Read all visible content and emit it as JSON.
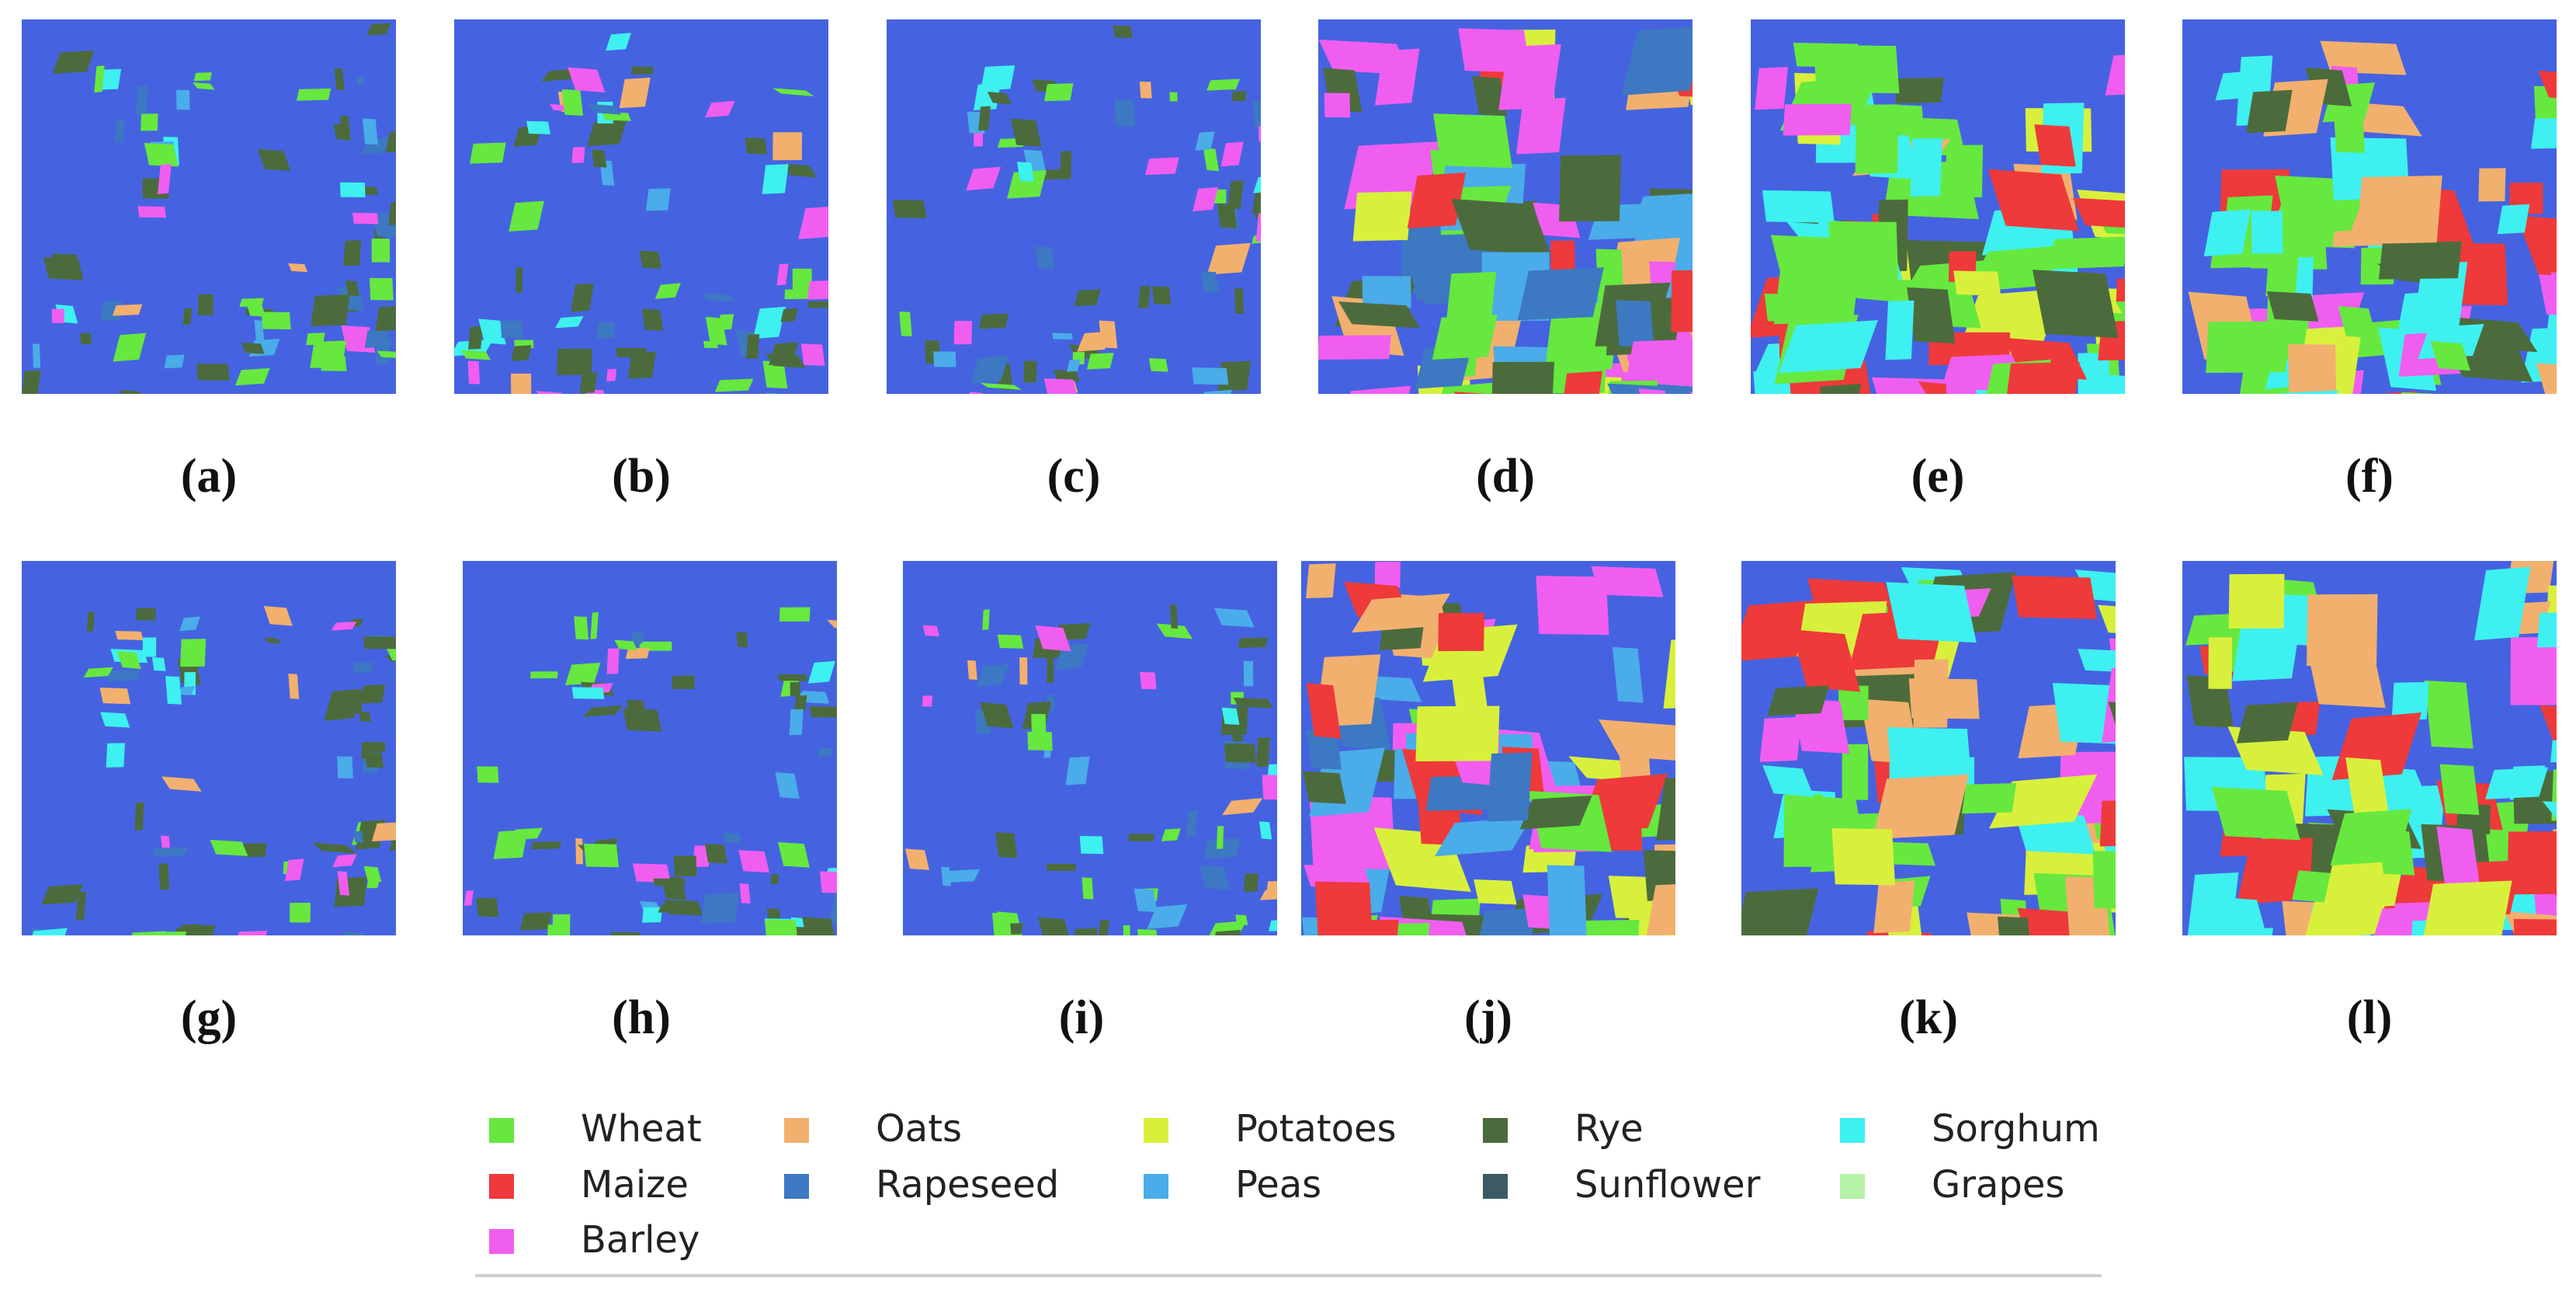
{
  "classes": [
    {
      "name": "Wheat",
      "color": "#66e83f"
    },
    {
      "name": "Maize",
      "color": "#ee3a3a"
    },
    {
      "name": "Barley",
      "color": "#f05ef0"
    },
    {
      "name": "Oats",
      "color": "#f2b06e"
    },
    {
      "name": "Rapeseed",
      "color": "#3d78c2"
    },
    {
      "name": "Potatoes",
      "color": "#d8f03c"
    },
    {
      "name": "Peas",
      "color": "#4aace8"
    },
    {
      "name": "Rye",
      "color": "#4c6b3c"
    },
    {
      "name": "Sunflower",
      "color": "#3c5a66"
    },
    {
      "name": "Sorghum",
      "color": "#3ff0f0"
    },
    {
      "name": "Grapes",
      "color": "#b6f2a8"
    }
  ],
  "background_color": "#4563e0",
  "panels": [
    {
      "caption": "(a)",
      "letter": "a",
      "density": "sparse"
    },
    {
      "caption": "(b)",
      "letter": "b",
      "density": "sparse"
    },
    {
      "caption": "(c)",
      "letter": "c",
      "density": "sparse"
    },
    {
      "caption": "(d)",
      "letter": "d",
      "density": "dense"
    },
    {
      "caption": "(e)",
      "letter": "e",
      "density": "dense"
    },
    {
      "caption": "(f)",
      "letter": "f",
      "density": "dense"
    },
    {
      "caption": "(g)",
      "letter": "g",
      "density": "sparse"
    },
    {
      "caption": "(h)",
      "letter": "h",
      "density": "sparse"
    },
    {
      "caption": "(i)",
      "letter": "i",
      "density": "sparse"
    },
    {
      "caption": "(j)",
      "letter": "j",
      "density": "dense"
    },
    {
      "caption": "(k)",
      "letter": "k",
      "density": "dense"
    },
    {
      "caption": "(l)",
      "letter": "l",
      "density": "dense"
    }
  ],
  "legend": {
    "items": [
      "Wheat",
      "Oats",
      "Potatoes",
      "Rye",
      "Sorghum",
      "Maize",
      "Rapeseed",
      "Peas",
      "Sunflower",
      "Grapes",
      "Barley"
    ]
  }
}
